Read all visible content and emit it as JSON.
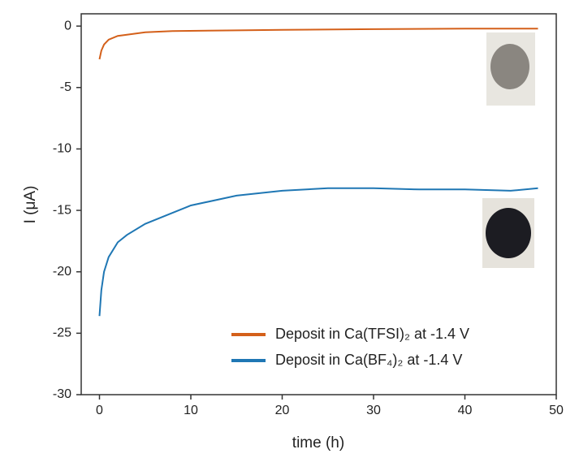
{
  "chart_data": {
    "type": "line",
    "x_label": "time (h)",
    "y_label": "I (μA)",
    "xlim": [
      -2,
      50
    ],
    "xticks": [
      0,
      10,
      20,
      30,
      40,
      50
    ],
    "ylim": [
      1,
      -30
    ],
    "yticks": [
      0,
      -5,
      -10,
      -15,
      -20,
      -25,
      -30
    ],
    "legend": "lower right",
    "series": [
      {
        "name": "Deposit in Ca(TFSI)₂ at -1.4 V",
        "color": "#d4601a",
        "x": [
          0,
          0.2,
          0.5,
          1,
          2,
          3,
          5,
          8,
          15,
          20,
          30,
          40,
          48
        ],
        "values": [
          -2.7,
          -2.0,
          -1.5,
          -1.1,
          -0.8,
          -0.7,
          -0.5,
          -0.4,
          -0.35,
          -0.3,
          -0.25,
          -0.2,
          -0.2
        ]
      },
      {
        "name": "Deposit in Ca(BF₄)₂ at -1.4 V",
        "color": "#1f77b4",
        "x": [
          0,
          0.2,
          0.5,
          1,
          2,
          3,
          5,
          8,
          10,
          15,
          20,
          25,
          30,
          35,
          40,
          45,
          48
        ],
        "values": [
          -23.6,
          -21.5,
          -20.0,
          -18.8,
          -17.6,
          -17.0,
          -16.1,
          -15.2,
          -14.6,
          -13.8,
          -13.4,
          -13.2,
          -13.2,
          -13.3,
          -13.3,
          -13.4,
          -13.2
        ]
      }
    ]
  }
}
